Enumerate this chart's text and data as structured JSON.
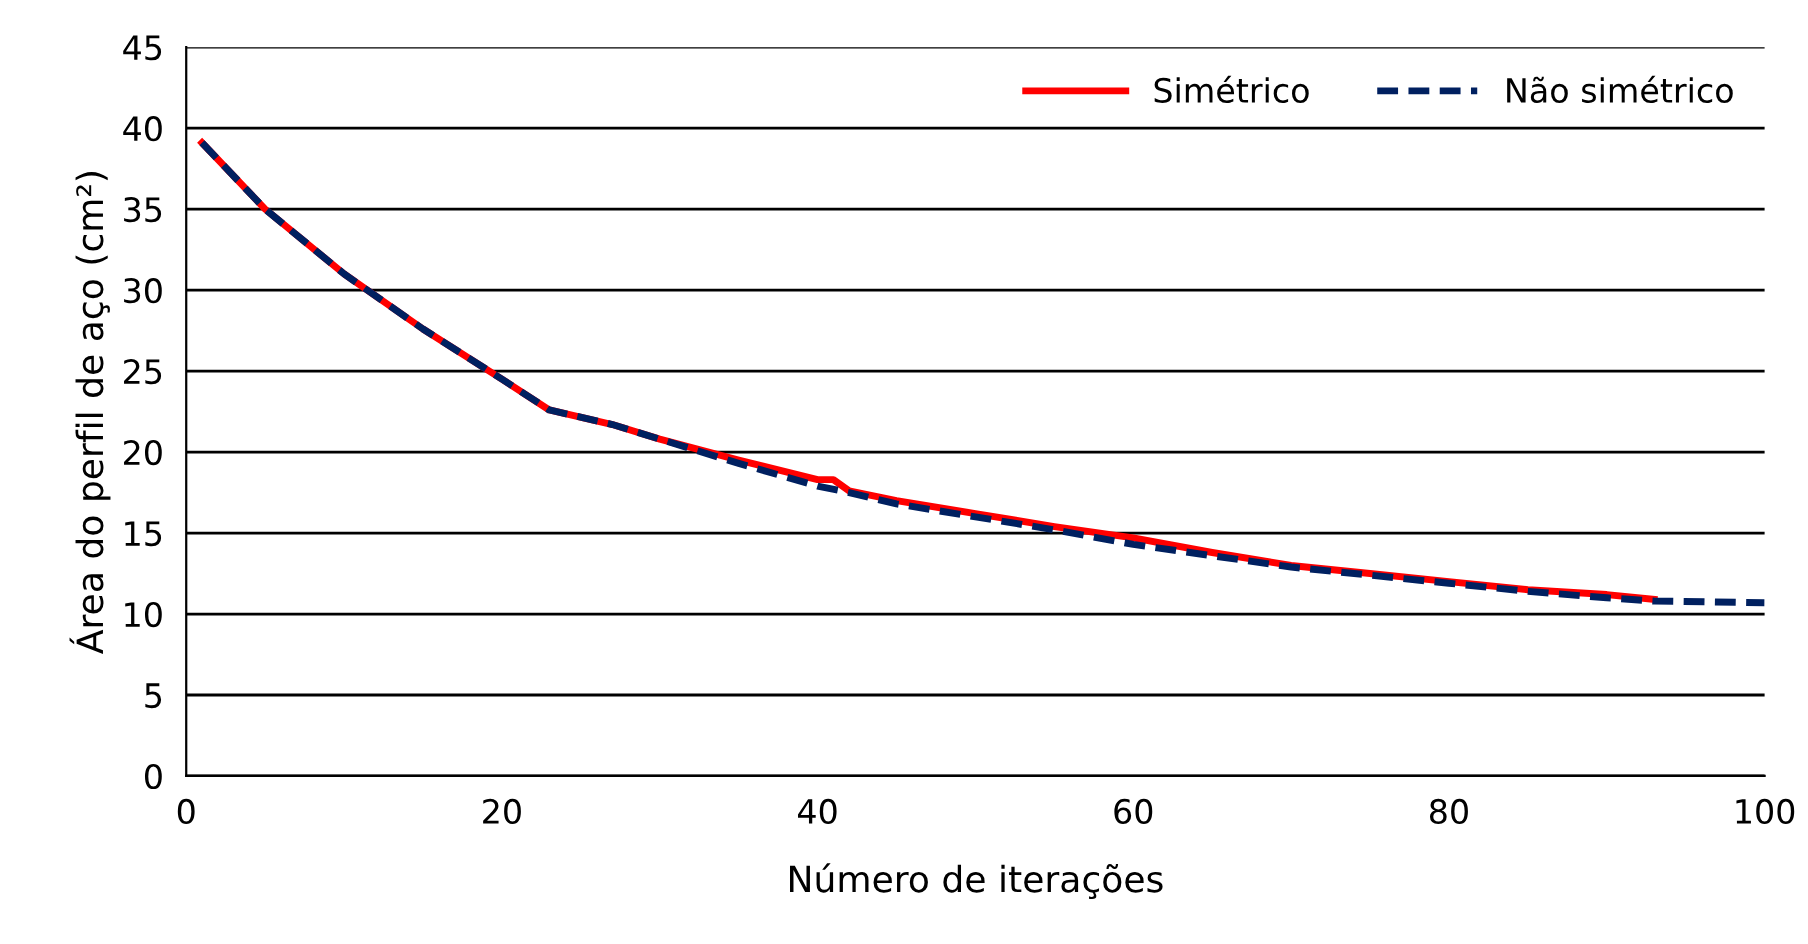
{
  "chart_data": {
    "type": "line",
    "xlabel": "Número de iterações",
    "ylabel": "Área do perfil de aço (cm²)",
    "xlim": [
      0,
      100
    ],
    "xticks": [
      0,
      20,
      40,
      60,
      80,
      100
    ],
    "ylim": [
      0,
      45
    ],
    "yticks": [
      0,
      5,
      10,
      15,
      20,
      25,
      30,
      35,
      40,
      45
    ],
    "grid": "y",
    "legend": "top right",
    "series": [
      {
        "name": "Simétrico",
        "color": "#ff0000",
        "line_style": "solid",
        "x": [
          1,
          5,
          10,
          15,
          20,
          23,
          27,
          30,
          35,
          40,
          41,
          42,
          45,
          50,
          55,
          60,
          65,
          70,
          75,
          80,
          85,
          90,
          93
        ],
        "values": [
          39.1,
          35,
          31,
          27.6,
          24.5,
          22.6,
          21.7,
          20.8,
          19.5,
          18.3,
          18.3,
          17.6,
          17.0,
          16.2,
          15.4,
          14.7,
          13.8,
          13.0,
          12.5,
          12.0,
          11.5,
          11.2,
          10.9
        ]
      },
      {
        "name": "Não simétrico",
        "color": "#002060",
        "line_style": "dashed",
        "x": [
          1,
          5,
          10,
          15,
          20,
          23,
          27,
          30,
          35,
          40,
          42,
          45,
          50,
          55,
          60,
          65,
          70,
          75,
          80,
          85,
          90,
          93,
          100
        ],
        "values": [
          39.1,
          35,
          31,
          27.6,
          24.5,
          22.6,
          21.7,
          20.8,
          19.3,
          17.9,
          17.5,
          16.8,
          16.0,
          15.2,
          14.3,
          13.6,
          12.9,
          12.4,
          11.9,
          11.4,
          11.0,
          10.8,
          10.7
        ]
      }
    ]
  }
}
